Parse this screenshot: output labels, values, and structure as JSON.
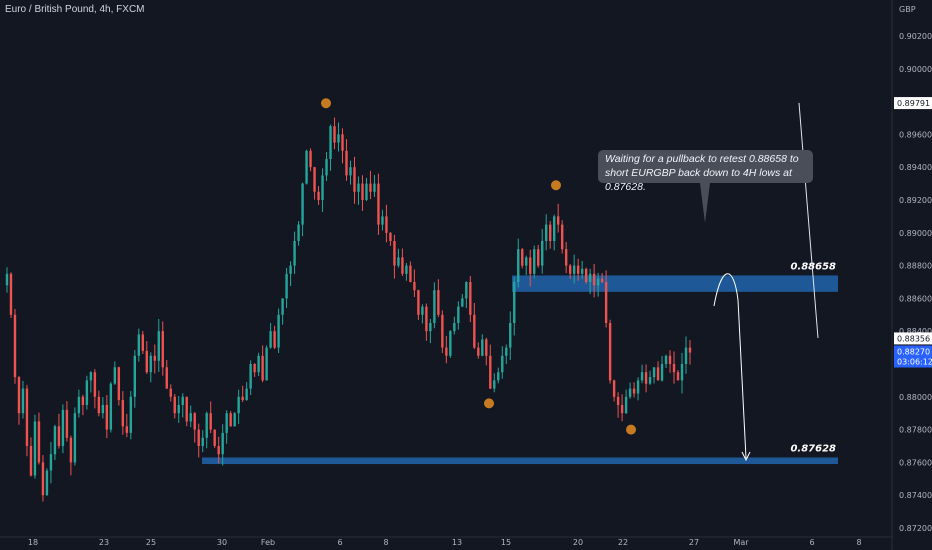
{
  "header": {
    "title": "Euro / British Pound, 4h, FXCM"
  },
  "annotation": {
    "text": "Waiting for a pullback to retest 0.88658 to short EURGBP back down to 4H lows at 0.87628."
  },
  "chart_data": {
    "type": "candlestick",
    "currency": "GBP",
    "x_ticks": [
      "18",
      "23",
      "25",
      "30",
      "Feb",
      "6",
      "8",
      "13",
      "15",
      "20",
      "22",
      "27",
      "Mar",
      "6",
      "8"
    ],
    "y_ticks": [
      0.902,
      0.9,
      0.898,
      0.896,
      0.894,
      0.892,
      0.89,
      0.888,
      0.886,
      0.884,
      0.882,
      0.88,
      0.878,
      0.876,
      0.874,
      0.872
    ],
    "y_tick_labels": [
      "0.90200",
      "0.90000",
      "0.89800",
      "0.89600",
      "0.89400",
      "0.89200",
      "0.89000",
      "0.88800",
      "0.88600",
      "0.88400",
      "0.88200",
      "0.88000",
      "0.87800",
      "0.87600",
      "0.87400",
      "0.87200"
    ],
    "ylim": [
      0.8715,
      0.904
    ],
    "price_labels": [
      {
        "value": 0.89791,
        "text": "0.89791",
        "style": "white"
      },
      {
        "value": 0.88356,
        "text": "0.88356",
        "style": "white"
      },
      {
        "value": 0.8827,
        "text": "0.88270",
        "subtext": "03:06:12",
        "style": "blue"
      }
    ],
    "levels": [
      {
        "label": "0.88658",
        "value": 0.88658,
        "zone_top": 0.8874,
        "zone_bottom": 0.8864
      },
      {
        "label": "0.87628",
        "value": 0.87628,
        "zone_top": 0.8763,
        "zone_bottom": 0.8759
      }
    ],
    "trendline": {
      "from": {
        "x_tick": "6",
        "price": 0.8978
      },
      "to": {
        "x_tick": "8",
        "price": 0.884
      }
    },
    "swing_points": [
      {
        "near_x_tick": "6",
        "price": 0.8979,
        "kind": "high"
      },
      {
        "near_x_tick": "15",
        "price": 0.8796,
        "kind": "low"
      },
      {
        "near_x_tick": "20",
        "price": 0.8929,
        "kind": "high"
      },
      {
        "near_x_tick": "22",
        "price": 0.878,
        "kind": "low"
      }
    ],
    "series_points": [
      [
        0,
        0.8868
      ],
      [
        4,
        0.8875
      ],
      [
        8,
        0.885
      ],
      [
        12,
        0.8812
      ],
      [
        16,
        0.879
      ],
      [
        20,
        0.8805
      ],
      [
        24,
        0.877
      ],
      [
        28,
        0.8752
      ],
      [
        32,
        0.8785
      ],
      [
        36,
        0.876
      ],
      [
        40,
        0.874
      ],
      [
        44,
        0.8755
      ],
      [
        48,
        0.8765
      ],
      [
        52,
        0.8782
      ],
      [
        56,
        0.877
      ],
      [
        60,
        0.8792
      ],
      [
        64,
        0.8775
      ],
      [
        68,
        0.876
      ],
      [
        72,
        0.879
      ],
      [
        76,
        0.88
      ],
      [
        80,
        0.8795
      ],
      [
        84,
        0.881
      ],
      [
        88,
        0.8815
      ],
      [
        92,
        0.88
      ],
      [
        96,
        0.879
      ],
      [
        100,
        0.8795
      ],
      [
        104,
        0.878
      ],
      [
        108,
        0.8808
      ],
      [
        112,
        0.8818
      ],
      [
        116,
        0.8798
      ],
      [
        120,
        0.8782
      ],
      [
        124,
        0.8778
      ],
      [
        128,
        0.88
      ],
      [
        132,
        0.8825
      ],
      [
        136,
        0.8838
      ],
      [
        140,
        0.8828
      ],
      [
        144,
        0.8815
      ],
      [
        148,
        0.8825
      ],
      [
        152,
        0.8822
      ],
      [
        156,
        0.884
      ],
      [
        160,
        0.8818
      ],
      [
        164,
        0.8805
      ],
      [
        168,
        0.88
      ],
      [
        172,
        0.879
      ],
      [
        176,
        0.8795
      ],
      [
        180,
        0.88
      ],
      [
        184,
        0.8785
      ],
      [
        188,
        0.879
      ],
      [
        192,
        0.878
      ],
      [
        196,
        0.877
      ],
      [
        200,
        0.8775
      ],
      [
        204,
        0.879
      ],
      [
        208,
        0.878
      ],
      [
        212,
        0.877
      ],
      [
        216,
        0.8765
      ],
      [
        220,
        0.8778
      ],
      [
        224,
        0.879
      ],
      [
        228,
        0.8782
      ],
      [
        232,
        0.879
      ],
      [
        236,
        0.88
      ],
      [
        240,
        0.8798
      ],
      [
        244,
        0.8805
      ],
      [
        248,
        0.882
      ],
      [
        252,
        0.8815
      ],
      [
        256,
        0.8825
      ],
      [
        260,
        0.881
      ],
      [
        264,
        0.883
      ],
      [
        268,
        0.884
      ],
      [
        272,
        0.883
      ],
      [
        276,
        0.885
      ],
      [
        280,
        0.886
      ],
      [
        284,
        0.8875
      ],
      [
        288,
        0.888
      ],
      [
        292,
        0.8895
      ],
      [
        296,
        0.8905
      ],
      [
        300,
        0.893
      ],
      [
        304,
        0.895
      ],
      [
        308,
        0.894
      ],
      [
        312,
        0.8925
      ],
      [
        316,
        0.892
      ],
      [
        320,
        0.8935
      ],
      [
        324,
        0.8945
      ],
      [
        328,
        0.8965
      ],
      [
        332,
        0.8955
      ],
      [
        336,
        0.896
      ],
      [
        340,
        0.895
      ],
      [
        344,
        0.8935
      ],
      [
        348,
        0.894
      ],
      [
        352,
        0.8925
      ],
      [
        356,
        0.893
      ],
      [
        360,
        0.892
      ],
      [
        364,
        0.893
      ],
      [
        368,
        0.8925
      ],
      [
        372,
        0.893
      ],
      [
        376,
        0.8905
      ],
      [
        380,
        0.891
      ],
      [
        384,
        0.89
      ],
      [
        388,
        0.8895
      ],
      [
        392,
        0.888
      ],
      [
        396,
        0.8885
      ],
      [
        400,
        0.8875
      ],
      [
        404,
        0.888
      ],
      [
        408,
        0.887
      ],
      [
        412,
        0.8865
      ],
      [
        416,
        0.885
      ],
      [
        420,
        0.8855
      ],
      [
        424,
        0.884
      ],
      [
        428,
        0.8845
      ],
      [
        432,
        0.8865
      ],
      [
        436,
        0.885
      ],
      [
        440,
        0.883
      ],
      [
        444,
        0.8825
      ],
      [
        448,
        0.884
      ],
      [
        452,
        0.8845
      ],
      [
        456,
        0.8855
      ],
      [
        460,
        0.886
      ],
      [
        464,
        0.887
      ],
      [
        468,
        0.885
      ],
      [
        472,
        0.883
      ],
      [
        476,
        0.8825
      ],
      [
        480,
        0.8835
      ],
      [
        484,
        0.8825
      ],
      [
        488,
        0.8805
      ],
      [
        492,
        0.881
      ],
      [
        496,
        0.8815
      ],
      [
        500,
        0.8825
      ],
      [
        504,
        0.883
      ],
      [
        508,
        0.8845
      ],
      [
        512,
        0.887
      ],
      [
        516,
        0.889
      ],
      [
        520,
        0.888
      ],
      [
        524,
        0.8885
      ],
      [
        528,
        0.8875
      ],
      [
        532,
        0.889
      ],
      [
        536,
        0.888
      ],
      [
        540,
        0.8895
      ],
      [
        544,
        0.8905
      ],
      [
        548,
        0.8895
      ],
      [
        552,
        0.891
      ],
      [
        556,
        0.8905
      ],
      [
        560,
        0.889
      ],
      [
        564,
        0.888
      ],
      [
        568,
        0.8875
      ],
      [
        572,
        0.888
      ],
      [
        576,
        0.8875
      ],
      [
        580,
        0.8878
      ],
      [
        584,
        0.887
      ],
      [
        588,
        0.8875
      ],
      [
        592,
        0.8868
      ],
      [
        596,
        0.8872
      ],
      [
        600,
        0.887
      ],
      [
        604,
        0.8845
      ],
      [
        608,
        0.881
      ],
      [
        612,
        0.88
      ],
      [
        616,
        0.8795
      ],
      [
        620,
        0.879
      ],
      [
        624,
        0.88
      ],
      [
        628,
        0.8805
      ],
      [
        632,
        0.8802
      ],
      [
        636,
        0.881
      ],
      [
        640,
        0.8815
      ],
      [
        644,
        0.8808
      ],
      [
        648,
        0.8812
      ],
      [
        652,
        0.8818
      ],
      [
        656,
        0.881
      ],
      [
        660,
        0.882
      ],
      [
        664,
        0.8825
      ],
      [
        668,
        0.882
      ],
      [
        672,
        0.8815
      ],
      [
        676,
        0.881
      ],
      [
        680,
        0.882
      ],
      [
        684,
        0.883
      ],
      [
        688,
        0.8827
      ]
    ]
  }
}
